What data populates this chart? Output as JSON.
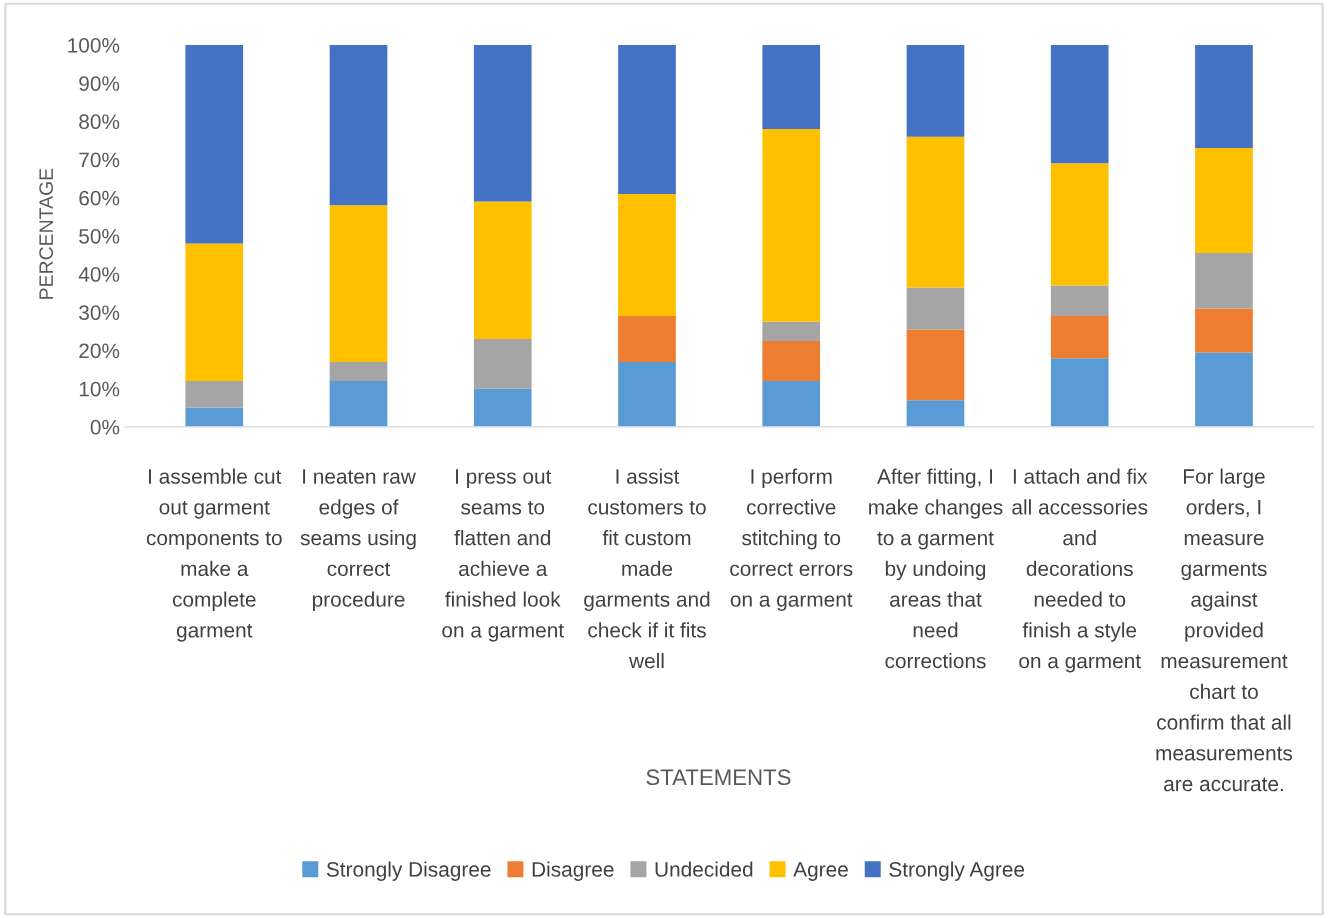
{
  "chart_data": {
    "type": "bar",
    "stacked": true,
    "xlabel": "STATEMENTS",
    "ylabel": "PERCENTAGE",
    "categories": [
      "I assemble cut out garment components to make a complete garment",
      "I neaten raw edges of seams using correct procedure",
      "I press out seams to flatten and achieve a finished look on a garment",
      "I assist customers to fit custom made garments and check if it fits well",
      "I perform corrective stitching to correct errors on a garment",
      "After fitting, I make changes to a garment by undoing areas that need corrections",
      "I attach and fix all accessories and decorations needed to finish a style on a garment",
      "For large orders, I measure garments against provided measurement chart to confirm that all measurements are accurate."
    ],
    "series": [
      {
        "name": "Strongly Disagree",
        "color": "#5b9bd5",
        "values": [
          5,
          12,
          10,
          17,
          12,
          7,
          18,
          19.5
        ]
      },
      {
        "name": "Disagree",
        "color": "#ed7d31",
        "values": [
          0,
          0,
          0,
          12,
          10.5,
          18.5,
          11,
          11.5
        ]
      },
      {
        "name": "Undecided",
        "color": "#a5a5a5",
        "values": [
          7,
          5,
          13,
          0,
          5,
          11,
          8,
          14.5
        ]
      },
      {
        "name": "Agree",
        "color": "#ffc000",
        "values": [
          36,
          41,
          36,
          32,
          50.5,
          39.5,
          32,
          27.5
        ]
      },
      {
        "name": "Strongly Agree",
        "color": "#4472c4",
        "values": [
          52,
          42,
          41,
          39,
          22,
          24,
          31,
          27
        ]
      }
    ],
    "ylim": [
      0,
      100
    ],
    "yticks": [
      {
        "value": 0,
        "label": "0%"
      },
      {
        "value": 10,
        "label": "10%"
      },
      {
        "value": 20,
        "label": "20%"
      },
      {
        "value": 30,
        "label": "30%"
      },
      {
        "value": 40,
        "label": "40%"
      },
      {
        "value": 50,
        "label": "50%"
      },
      {
        "value": 60,
        "label": "60%"
      },
      {
        "value": 70,
        "label": "70%"
      },
      {
        "value": 80,
        "label": "80%"
      },
      {
        "value": 90,
        "label": "90%"
      },
      {
        "value": 100,
        "label": "100%"
      }
    ],
    "grid": false,
    "legend": "bottom"
  }
}
